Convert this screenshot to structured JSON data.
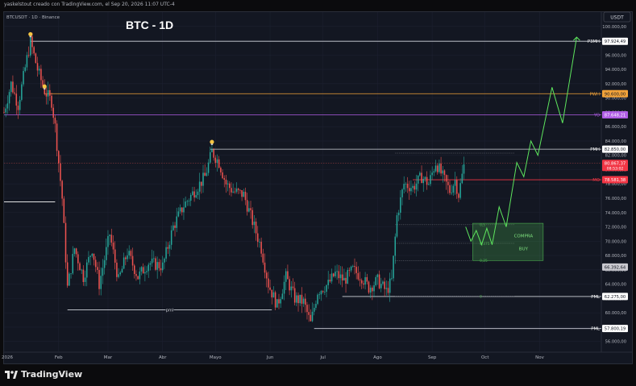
{
  "header": {
    "caption": "yaskelstout creado con TradingView.com, el Sep 20, 2026 11:07 UTC-4"
  },
  "chart_header": {
    "symbol": "BTCUSDT · 1D · Binance",
    "title": "BTC - 1D",
    "currency": "USDT"
  },
  "footer": {
    "brand": "TradingView"
  },
  "chart_data": {
    "type": "candlestick",
    "title": "BTC - 1D",
    "x_ticks": [
      "2026",
      "Feb",
      "Mar",
      "Abr",
      "Mayo",
      "Jun",
      "Jul",
      "Ago",
      "Sep",
      "Oct",
      "Nov"
    ],
    "y_ticks": [
      "100.000,00",
      "98.000,00",
      "96.000,00",
      "94.000,00",
      "92.000,00",
      "90.000,00",
      "88.000,00",
      "86.000,00",
      "84.000,00",
      "82.000,00",
      "80.000,00",
      "78.000,00",
      "76.000,00",
      "74.000,00",
      "72.000,00",
      "70.000,00",
      "68.000,00",
      "66.000,00",
      "64.000,00",
      "62.000,00",
      "60.000,00",
      "58.000,00",
      "56.000,00"
    ],
    "y_tick_values": [
      100000,
      98000,
      96000,
      94000,
      92000,
      90000,
      88000,
      86000,
      84000,
      82000,
      80000,
      78000,
      76000,
      74000,
      72000,
      70000,
      68000,
      66000,
      64000,
      62000,
      60000,
      58000,
      56000
    ],
    "ylim": [
      54500,
      102000
    ],
    "x_day_range": [
      0,
      339
    ],
    "x_tick_days": [
      0,
      31,
      59,
      90,
      120,
      151,
      181,
      212,
      243,
      273,
      304
    ],
    "series_anchors": [
      {
        "day": 0,
        "price": 88000
      },
      {
        "day": 4,
        "price": 92000
      },
      {
        "day": 8,
        "price": 89000
      },
      {
        "day": 13,
        "price": 95500
      },
      {
        "day": 15,
        "price": 97900
      },
      {
        "day": 19,
        "price": 94000
      },
      {
        "day": 23,
        "price": 91000
      },
      {
        "day": 27,
        "price": 89500
      },
      {
        "day": 29,
        "price": 86000
      },
      {
        "day": 33,
        "price": 76000
      },
      {
        "day": 36,
        "price": 63500
      },
      {
        "day": 40,
        "price": 69000
      },
      {
        "day": 45,
        "price": 65000
      },
      {
        "day": 50,
        "price": 69000
      },
      {
        "day": 54,
        "price": 64000
      },
      {
        "day": 60,
        "price": 71000
      },
      {
        "day": 65,
        "price": 64500
      },
      {
        "day": 70,
        "price": 68500
      },
      {
        "day": 76,
        "price": 65000
      },
      {
        "day": 82,
        "price": 67000
      },
      {
        "day": 90,
        "price": 66500
      },
      {
        "day": 96,
        "price": 72000
      },
      {
        "day": 102,
        "price": 75000
      },
      {
        "day": 108,
        "price": 77000
      },
      {
        "day": 114,
        "price": 79000
      },
      {
        "day": 118,
        "price": 82500
      },
      {
        "day": 122,
        "price": 81000
      },
      {
        "day": 126,
        "price": 78000
      },
      {
        "day": 130,
        "price": 77000
      },
      {
        "day": 136,
        "price": 76500
      },
      {
        "day": 140,
        "price": 73500
      },
      {
        "day": 146,
        "price": 69000
      },
      {
        "day": 150,
        "price": 64000
      },
      {
        "day": 155,
        "price": 61000
      },
      {
        "day": 160,
        "price": 65000
      },
      {
        "day": 165,
        "price": 62000
      },
      {
        "day": 170,
        "price": 61500
      },
      {
        "day": 174,
        "price": 58500
      },
      {
        "day": 178,
        "price": 63000
      },
      {
        "day": 184,
        "price": 64000
      },
      {
        "day": 188,
        "price": 65500
      },
      {
        "day": 193,
        "price": 64500
      },
      {
        "day": 198,
        "price": 66000
      },
      {
        "day": 203,
        "price": 65000
      },
      {
        "day": 207,
        "price": 63500
      },
      {
        "day": 212,
        "price": 64500
      },
      {
        "day": 217,
        "price": 63000
      },
      {
        "day": 220,
        "price": 64500
      },
      {
        "day": 223,
        "price": 73500
      },
      {
        "day": 227,
        "price": 78000
      },
      {
        "day": 232,
        "price": 77500
      },
      {
        "day": 237,
        "price": 79000
      },
      {
        "day": 241,
        "price": 78000
      },
      {
        "day": 245,
        "price": 81000
      },
      {
        "day": 249,
        "price": 79000
      },
      {
        "day": 253,
        "price": 77000
      },
      {
        "day": 256,
        "price": 78500
      },
      {
        "day": 258,
        "price": 76500
      },
      {
        "day": 261,
        "price": 80500
      }
    ],
    "horizontal_levels": [
      {
        "label": "P3MH",
        "value": "97.924,49",
        "price": 97924.49,
        "color": "#d1d4dc",
        "tag_bg": "#ffffff",
        "tag_fg": "#131722"
      },
      {
        "label": "PWH",
        "value": "90.600,00",
        "price": 90600,
        "color": "#f2a33a",
        "tag_bg": "#f2a33a",
        "tag_fg": "#131722"
      },
      {
        "label": "YO",
        "value": "87.648,21",
        "price": 87648.21,
        "color": "#b05ee6",
        "tag_bg": "#b05ee6",
        "tag_fg": "#ffffff"
      },
      {
        "label": "PMH",
        "value": "82.850,00",
        "price": 82850,
        "color": "#d1d4dc",
        "tag_bg": "#ffffff",
        "tag_fg": "#131722"
      },
      {
        "label": "MO",
        "value": "78.581,38",
        "price": 78581.38,
        "color": "#f23645",
        "tag_bg": "#f23645",
        "tag_fg": "#ffffff"
      },
      {
        "label": "PML",
        "value": "62.275,00",
        "price": 62275,
        "color": "#d1d4dc",
        "tag_bg": "#ffffff",
        "tag_fg": "#131722"
      },
      {
        "label": "PML",
        "value": "57.800,19",
        "price": 57800.19,
        "color": "#d1d4dc",
        "tag_bg": "#ffffff",
        "tag_fg": "#131722"
      }
    ],
    "current_price": {
      "value": "80.867,37",
      "countdown": "08:53:02",
      "price": 80867.37,
      "color": "#f23645"
    },
    "extra_price_tag": {
      "value": "66.392,64",
      "price": 66392.64,
      "bg": "#c9c9cf",
      "fg": "#131722"
    },
    "fib_levels": [
      {
        "label": "0,5",
        "price": 72300
      },
      {
        "label": "0,375",
        "price": 69700
      },
      {
        "label": "0,25",
        "price": 67300
      },
      {
        "label": "0",
        "price": 62300
      }
    ],
    "annotations": {
      "pml_label": "pml",
      "zone_label_1": "COMPRA",
      "zone_label_2": "BUY"
    },
    "buy_zone": {
      "price_top": 72500,
      "price_bottom": 67300,
      "day_start": 266,
      "day_end": 306
    },
    "projection_path": [
      {
        "day": 262,
        "price": 72000
      },
      {
        "day": 265,
        "price": 70000
      },
      {
        "day": 268,
        "price": 71500
      },
      {
        "day": 271,
        "price": 69500
      },
      {
        "day": 274,
        "price": 71800
      },
      {
        "day": 277,
        "price": 69500
      },
      {
        "day": 281,
        "price": 74800
      },
      {
        "day": 285,
        "price": 72000
      },
      {
        "day": 291,
        "price": 81000
      },
      {
        "day": 295,
        "price": 79000
      },
      {
        "day": 299,
        "price": 84000
      },
      {
        "day": 303,
        "price": 82000
      },
      {
        "day": 311,
        "price": 91500
      },
      {
        "day": 317,
        "price": 86500
      },
      {
        "day": 325,
        "price": 98500
      }
    ]
  }
}
